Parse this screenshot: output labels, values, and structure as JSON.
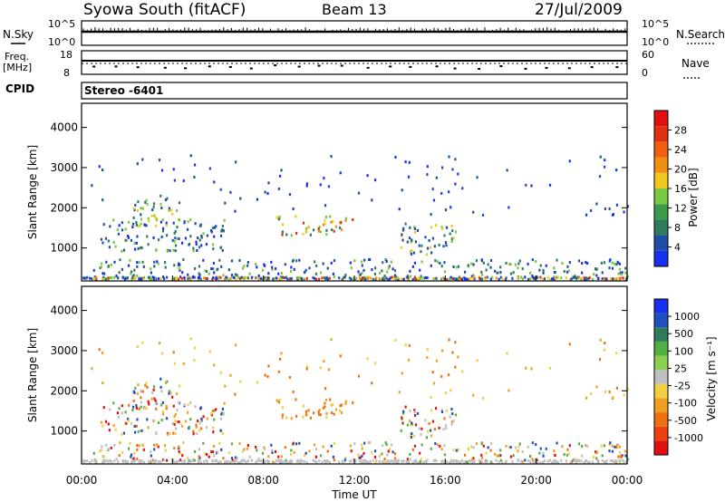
{
  "header": {
    "station": "Syowa South (fitACF)",
    "beam": "Beam 13",
    "date": "27/Jul/2009"
  },
  "top_panels": {
    "nsky_label": "N.Sky",
    "nsearch_label": "N.Search",
    "noise_left_ticks": [
      "10^5",
      "10^0"
    ],
    "noise_right_ticks": [
      "10^5",
      "10^0"
    ],
    "freq_label_1": "Freq.",
    "freq_label_2": "[MHz]",
    "freq_ticks": [
      "18",
      "8"
    ],
    "nave_ticks": [
      "60",
      "0"
    ],
    "nave_label": "Nave",
    "cpid_label": "CPID",
    "stereo_text": "Stereo -6401"
  },
  "chart_data": [
    {
      "type": "heatmap",
      "name": "power",
      "ylabel": "Slant Range [km]",
      "xlabel": "",
      "yticks": [
        "1000",
        "2000",
        "3000",
        "4000"
      ],
      "ylim": [
        180,
        4600
      ],
      "xlim_hours": [
        0,
        24
      ],
      "colorbar": {
        "label": "Power [dB]",
        "ticks": [
          "4",
          "8",
          "12",
          "16",
          "20",
          "24",
          "28"
        ],
        "colors": [
          "#1830f0",
          "#1e4ea8",
          "#2e7a5a",
          "#3a9a4a",
          "#7ac840",
          "#f0c820",
          "#f09010",
          "#f06010",
          "#e03010",
          "#e01010"
        ]
      },
      "echo_regions": [
        {
          "t0": 0.8,
          "t1": 6.3,
          "r0": 900,
          "r1": 1700,
          "level": "mixed"
        },
        {
          "t0": 2.2,
          "t1": 4.4,
          "r0": 1500,
          "r1": 2300,
          "level": "medium"
        },
        {
          "t0": 8.4,
          "t1": 11.9,
          "r0": 1300,
          "r1": 1800,
          "level": "high"
        },
        {
          "t0": 14.0,
          "t1": 16.5,
          "r0": 800,
          "r1": 1600,
          "level": "medium"
        },
        {
          "t0": 0.5,
          "t1": 24,
          "r0": 200,
          "r1": 700,
          "level": "mixed"
        }
      ]
    },
    {
      "type": "heatmap",
      "name": "velocity",
      "ylabel": "Slant Range [km]",
      "xlabel": "Time UT",
      "yticks": [
        "1000",
        "2000",
        "3000",
        "4000"
      ],
      "ylim": [
        180,
        4600
      ],
      "xticks": [
        "00:00",
        "04:00",
        "08:00",
        "12:00",
        "16:00",
        "20:00",
        "00:00"
      ],
      "colorbar": {
        "label": "Velocity [m s⁻¹]",
        "ticks": [
          "1000",
          "500",
          "100",
          "25",
          "-25",
          "-100",
          "-500",
          "-1000"
        ],
        "colors": [
          "#1830f0",
          "#2050c0",
          "#2e7a5a",
          "#50b040",
          "#8ad050",
          "#c0c0c0",
          "#f0d040",
          "#f0a020",
          "#f07010",
          "#f04010",
          "#e01010"
        ]
      }
    }
  ]
}
